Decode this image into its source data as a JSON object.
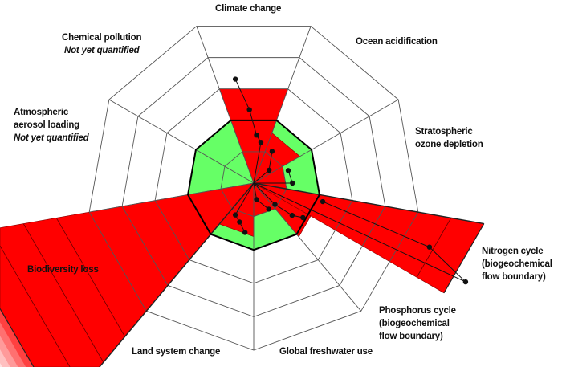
{
  "labels": {
    "climate": "Climate change",
    "ocean": "Ocean acidification",
    "ozone": [
      "Stratospheric",
      "ozone depletion"
    ],
    "nitrogen": [
      "Nitrogen cycle",
      "(biogeochemical",
      "flow boundary)"
    ],
    "phosphorus": [
      "Phosphorus cycle",
      "(biogeochemical",
      "flow boundary)"
    ],
    "freshwater": "Global freshwater use",
    "land": "Land system change",
    "biodiversity": "Biodiversity loss",
    "aerosol": [
      "Atmospheric",
      "aerosol loading"
    ],
    "chemical": "Chemical pollution",
    "not_quantified": "Not yet quantified"
  },
  "chart_data": {
    "type": "radar-wedge",
    "rings": 5,
    "boundary_ring": 2,
    "boundary_value": 1.0,
    "categories": [
      "Climate change",
      "Ocean acidification",
      "Stratospheric ozone depletion",
      "Nitrogen cycle",
      "Phosphorus cycle",
      "Global freshwater use",
      "Land system change",
      "Biodiversity loss",
      "Atmospheric aerosol loading",
      "Chemical pollution"
    ],
    "values": [
      1.5,
      0.8,
      0.5,
      3.5,
      1.05,
      0.5,
      0.8,
      4.5,
      null,
      null
    ],
    "trajectories": [
      [
        1.58,
        1.1,
        0.72,
        0.62
      ],
      [
        0.55,
        0.3
      ],
      [
        0.55,
        0.58
      ],
      [
        1.07,
        2.8,
        3.5
      ],
      [
        0.9,
        0.75,
        0.45
      ],
      [
        0.45,
        0.25
      ],
      [
        0.75,
        0.62,
        0.55
      ],
      [],
      [],
      []
    ],
    "colors": {
      "safe": "#66ff66",
      "exceeded": "#ff0000",
      "web": "#555555",
      "boundary": "#000000"
    }
  }
}
